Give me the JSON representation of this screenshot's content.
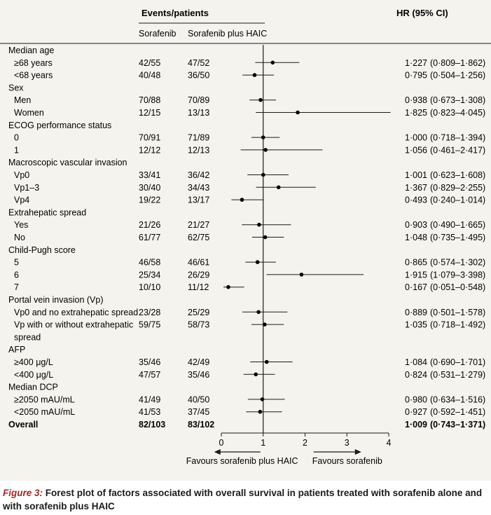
{
  "header": {
    "events_title": "Events/patients",
    "col_sorafenib": "Sorafenib",
    "col_combo": "Sorafenib plus HAIC",
    "hr_title": "HR (95% CI)"
  },
  "chart_data": {
    "type": "forest",
    "x_axis": {
      "ticks": [
        0,
        1,
        2,
        3,
        4
      ],
      "xlim": [
        0,
        4
      ],
      "reference": 1
    },
    "favours_left": "Favours sorafenib plus HAIC",
    "favours_right": "Favours sorafenib",
    "rows": [
      {
        "kind": "group",
        "label": "Median age"
      },
      {
        "kind": "item",
        "label": "≥68 years",
        "sor": "42/55",
        "combo": "47/52",
        "hr": 1.227,
        "lo": 0.809,
        "hi": 1.862,
        "hr_text": "1·227",
        "ci_text": "(0·809–1·862)"
      },
      {
        "kind": "item",
        "label": "<68 years",
        "sor": "40/48",
        "combo": "36/50",
        "hr": 0.795,
        "lo": 0.504,
        "hi": 1.256,
        "hr_text": "0·795",
        "ci_text": "(0·504–1·256)"
      },
      {
        "kind": "group",
        "label": "Sex"
      },
      {
        "kind": "item",
        "label": "Men",
        "sor": "70/88",
        "combo": "70/89",
        "hr": 0.938,
        "lo": 0.673,
        "hi": 1.308,
        "hr_text": "0·938",
        "ci_text": "(0·673–1·308)"
      },
      {
        "kind": "item",
        "label": "Women",
        "sor": "12/15",
        "combo": "13/13",
        "hr": 1.825,
        "lo": 0.823,
        "hi": 4.045,
        "hr_text": "1·825",
        "ci_text": "(0·823–4·045)"
      },
      {
        "kind": "group",
        "label": "ECOG performance status"
      },
      {
        "kind": "item",
        "label": "0",
        "sor": "70/91",
        "combo": "71/89",
        "hr": 1.0,
        "lo": 0.718,
        "hi": 1.394,
        "hr_text": "1·000",
        "ci_text": "(0·718–1·394)"
      },
      {
        "kind": "item",
        "label": "1",
        "sor": "12/12",
        "combo": "12/13",
        "hr": 1.056,
        "lo": 0.461,
        "hi": 2.417,
        "hr_text": "1·056",
        "ci_text": "(0·461–2·417)"
      },
      {
        "kind": "group",
        "label": "Macroscopic vascular invasion"
      },
      {
        "kind": "item",
        "label": "Vp0",
        "sor": "33/41",
        "combo": "36/42",
        "hr": 1.001,
        "lo": 0.623,
        "hi": 1.608,
        "hr_text": "1·001",
        "ci_text": "(0·623–1·608)"
      },
      {
        "kind": "item",
        "label": "Vp1–3",
        "sor": "30/40",
        "combo": "34/43",
        "hr": 1.367,
        "lo": 0.829,
        "hi": 2.255,
        "hr_text": "1·367",
        "ci_text": "(0·829–2·255)"
      },
      {
        "kind": "item",
        "label": "Vp4",
        "sor": "19/22",
        "combo": "13/17",
        "hr": 0.493,
        "lo": 0.24,
        "hi": 1.014,
        "hr_text": "0·493",
        "ci_text": "(0·240–1·014)"
      },
      {
        "kind": "group",
        "label": "Extrahepatic spread"
      },
      {
        "kind": "item",
        "label": "Yes",
        "sor": "21/26",
        "combo": "21/27",
        "hr": 0.903,
        "lo": 0.49,
        "hi": 1.665,
        "hr_text": "0·903",
        "ci_text": "(0·490–1·665)"
      },
      {
        "kind": "item",
        "label": "No",
        "sor": "61/77",
        "combo": "62/75",
        "hr": 1.048,
        "lo": 0.735,
        "hi": 1.495,
        "hr_text": "1·048",
        "ci_text": "(0·735–1·495)"
      },
      {
        "kind": "group",
        "label": "Child-Pugh score"
      },
      {
        "kind": "item",
        "label": "5",
        "sor": "46/58",
        "combo": "46/61",
        "hr": 0.865,
        "lo": 0.574,
        "hi": 1.302,
        "hr_text": "0·865",
        "ci_text": "(0·574–1·302)"
      },
      {
        "kind": "item",
        "label": "6",
        "sor": "25/34",
        "combo": "26/29",
        "hr": 1.915,
        "lo": 1.079,
        "hi": 3.398,
        "hr_text": "1·915",
        "ci_text": "(1·079–3·398)"
      },
      {
        "kind": "item",
        "label": "7",
        "sor": "10/10",
        "combo": "11/12",
        "hr": 0.167,
        "lo": 0.051,
        "hi": 0.548,
        "hr_text": "0·167",
        "ci_text": "(0·051–0·548)"
      },
      {
        "kind": "group",
        "label": "Portal vein invasion (Vp)"
      },
      {
        "kind": "item",
        "label": "Vp0 and no extrahepatic spread",
        "sor": "23/28",
        "combo": "25/29",
        "hr": 0.889,
        "lo": 0.501,
        "hi": 1.578,
        "hr_text": "0·889",
        "ci_text": "(0·501–1·578)"
      },
      {
        "kind": "item",
        "label": "Vp with or without extrahepatic",
        "sor": "59/75",
        "combo": "58/73",
        "hr": 1.035,
        "lo": 0.718,
        "hi": 1.492,
        "hr_text": "1·035",
        "ci_text": "(0·718–1·492)"
      },
      {
        "kind": "cont",
        "label": "spread"
      },
      {
        "kind": "group",
        "label": "AFP"
      },
      {
        "kind": "item",
        "label": "≥400 μg/L",
        "sor": "35/46",
        "combo": "42/49",
        "hr": 1.084,
        "lo": 0.69,
        "hi": 1.701,
        "hr_text": "1·084",
        "ci_text": "(0·690–1·701)"
      },
      {
        "kind": "item",
        "label": "<400 μg/L",
        "sor": "47/57",
        "combo": "35/46",
        "hr": 0.824,
        "lo": 0.531,
        "hi": 1.279,
        "hr_text": "0·824",
        "ci_text": "(0·531–1·279)"
      },
      {
        "kind": "group",
        "label": "Median DCP"
      },
      {
        "kind": "item",
        "label": "≥2050 mAU/mL",
        "sor": "41/49",
        "combo": "40/50",
        "hr": 0.98,
        "lo": 0.634,
        "hi": 1.516,
        "hr_text": "0·980",
        "ci_text": "(0·634–1·516)"
      },
      {
        "kind": "item",
        "label": "<2050 mAU/mL",
        "sor": "41/53",
        "combo": "37/45",
        "hr": 0.927,
        "lo": 0.592,
        "hi": 1.451,
        "hr_text": "0·927",
        "ci_text": "(0·592–1·451)"
      },
      {
        "kind": "overall",
        "label": "Overall",
        "sor": "82/103",
        "combo": "83/102",
        "hr": 1.009,
        "lo": 0.743,
        "hi": 1.371,
        "hr_text": "1·009",
        "ci_text": "(0·743–1·371)"
      }
    ]
  },
  "caption": {
    "label": "Figure 3:",
    "text": " Forest plot of factors associated with overall survival in patients treated with sorafenib alone and with sorafenib plus HAIC"
  },
  "colors": {
    "panel_bg": "#f5f3ee",
    "ink": "#1a1a1a",
    "caption_label": "#b02323"
  }
}
